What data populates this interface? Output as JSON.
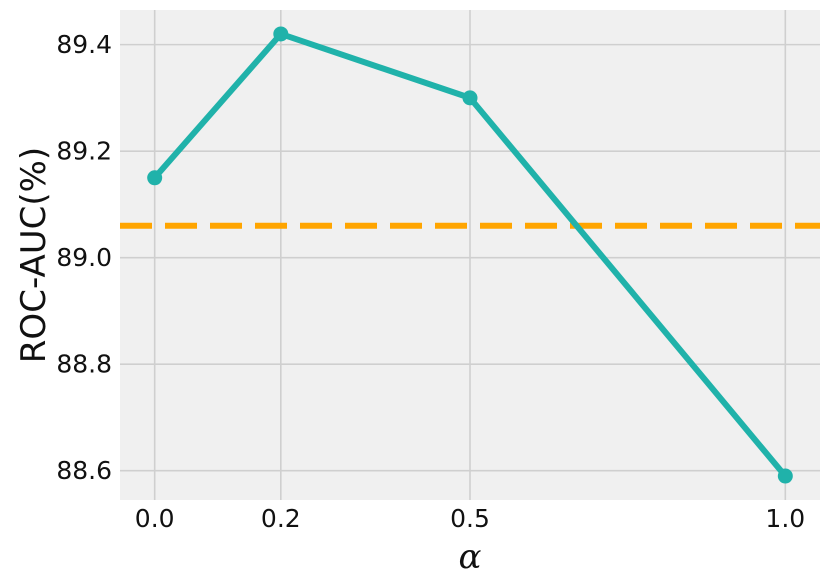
{
  "chart_data": {
    "type": "line",
    "xlabel": "α",
    "ylabel": "ROC-AUC(%)",
    "x": [
      0.0,
      0.2,
      0.5,
      1.0
    ],
    "xticks": [
      "0.0",
      "0.2",
      "0.5",
      "1.0"
    ],
    "yticks": [
      "88.6",
      "88.8",
      "89.0",
      "89.2",
      "89.4"
    ],
    "ytick_values": [
      88.6,
      88.8,
      89.0,
      89.2,
      89.4
    ],
    "xlim": [
      -0.055,
      1.055
    ],
    "ylim": [
      88.545,
      89.465
    ],
    "series": [
      {
        "values": [
          89.15,
          89.42,
          89.3,
          88.59
        ],
        "color": "#20b2aa"
      }
    ],
    "reference_line": {
      "y": 89.06,
      "style": "dashed",
      "color": "#ffa500"
    },
    "grid": true,
    "background": "#f0f0f0"
  }
}
